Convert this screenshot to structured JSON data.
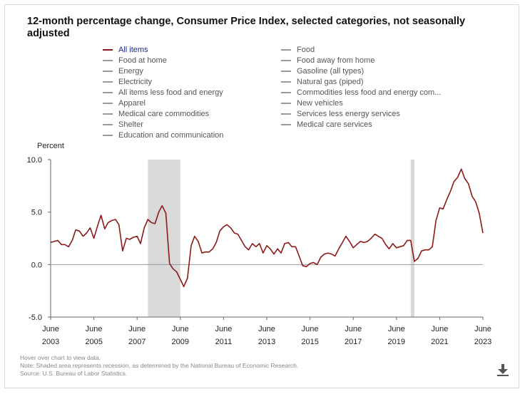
{
  "chart_data": {
    "type": "line",
    "title": "12-month percentage change, Consumer Price Index, selected categories, not seasonally adjusted",
    "ylabel": "Percent",
    "ylim": [
      -5.0,
      10.0
    ],
    "yticks": [
      "10.0",
      "5.0",
      "0.0",
      "-5.0"
    ],
    "xlim": [
      2003.42,
      2023.42
    ],
    "xticks": [
      {
        "month": "June",
        "year": "2003"
      },
      {
        "month": "June",
        "year": "2005"
      },
      {
        "month": "June",
        "year": "2007"
      },
      {
        "month": "June",
        "year": "2009"
      },
      {
        "month": "June",
        "year": "2011"
      },
      {
        "month": "June",
        "year": "2013"
      },
      {
        "month": "June",
        "year": "2015"
      },
      {
        "month": "June",
        "year": "2017"
      },
      {
        "month": "June",
        "year": "2019"
      },
      {
        "month": "June",
        "year": "2021"
      },
      {
        "month": "June",
        "year": "2023"
      }
    ],
    "recessions": [
      [
        2007.92,
        2009.42
      ],
      [
        2020.08,
        2020.25
      ]
    ],
    "series_color": "#8b1a1a",
    "recession_color": "#d9d9d9",
    "series": [
      {
        "name": "All items",
        "points": [
          [
            2003.42,
            2.1
          ],
          [
            2003.58,
            2.2
          ],
          [
            2003.75,
            2.3
          ],
          [
            2003.92,
            1.9
          ],
          [
            2004.08,
            1.9
          ],
          [
            2004.25,
            1.7
          ],
          [
            2004.42,
            2.3
          ],
          [
            2004.58,
            3.3
          ],
          [
            2004.75,
            3.2
          ],
          [
            2004.92,
            2.7
          ],
          [
            2005.08,
            3.0
          ],
          [
            2005.25,
            3.5
          ],
          [
            2005.42,
            2.5
          ],
          [
            2005.58,
            3.6
          ],
          [
            2005.75,
            4.7
          ],
          [
            2005.92,
            3.4
          ],
          [
            2006.08,
            4.0
          ],
          [
            2006.25,
            4.2
          ],
          [
            2006.42,
            4.3
          ],
          [
            2006.58,
            3.8
          ],
          [
            2006.75,
            1.3
          ],
          [
            2006.92,
            2.5
          ],
          [
            2007.08,
            2.4
          ],
          [
            2007.25,
            2.6
          ],
          [
            2007.42,
            2.7
          ],
          [
            2007.58,
            2.0
          ],
          [
            2007.75,
            3.5
          ],
          [
            2007.92,
            4.3
          ],
          [
            2008.08,
            4.0
          ],
          [
            2008.25,
            3.9
          ],
          [
            2008.42,
            5.0
          ],
          [
            2008.58,
            5.6
          ],
          [
            2008.75,
            4.9
          ],
          [
            2008.92,
            0.1
          ],
          [
            2009.08,
            -0.4
          ],
          [
            2009.25,
            -0.7
          ],
          [
            2009.42,
            -1.4
          ],
          [
            2009.58,
            -2.1
          ],
          [
            2009.75,
            -1.3
          ],
          [
            2009.92,
            1.8
          ],
          [
            2010.08,
            2.7
          ],
          [
            2010.25,
            2.2
          ],
          [
            2010.42,
            1.1
          ],
          [
            2010.58,
            1.2
          ],
          [
            2010.75,
            1.2
          ],
          [
            2010.92,
            1.5
          ],
          [
            2011.08,
            2.1
          ],
          [
            2011.25,
            3.2
          ],
          [
            2011.42,
            3.6
          ],
          [
            2011.58,
            3.8
          ],
          [
            2011.75,
            3.5
          ],
          [
            2011.92,
            3.0
          ],
          [
            2012.08,
            2.9
          ],
          [
            2012.25,
            2.3
          ],
          [
            2012.42,
            1.7
          ],
          [
            2012.58,
            1.4
          ],
          [
            2012.75,
            2.0
          ],
          [
            2012.92,
            1.7
          ],
          [
            2013.08,
            2.0
          ],
          [
            2013.25,
            1.1
          ],
          [
            2013.42,
            1.8
          ],
          [
            2013.58,
            1.5
          ],
          [
            2013.75,
            1.0
          ],
          [
            2013.92,
            1.5
          ],
          [
            2014.08,
            1.1
          ],
          [
            2014.25,
            2.0
          ],
          [
            2014.42,
            2.1
          ],
          [
            2014.58,
            1.7
          ],
          [
            2014.75,
            1.7
          ],
          [
            2014.92,
            0.8
          ],
          [
            2015.08,
            -0.1
          ],
          [
            2015.25,
            -0.2
          ],
          [
            2015.42,
            0.1
          ],
          [
            2015.58,
            0.2
          ],
          [
            2015.75,
            0.0
          ],
          [
            2015.92,
            0.7
          ],
          [
            2016.08,
            1.0
          ],
          [
            2016.25,
            1.1
          ],
          [
            2016.42,
            1.0
          ],
          [
            2016.58,
            0.8
          ],
          [
            2016.75,
            1.5
          ],
          [
            2016.92,
            2.1
          ],
          [
            2017.08,
            2.7
          ],
          [
            2017.25,
            2.2
          ],
          [
            2017.42,
            1.6
          ],
          [
            2017.58,
            1.9
          ],
          [
            2017.75,
            2.2
          ],
          [
            2017.92,
            2.1
          ],
          [
            2018.08,
            2.2
          ],
          [
            2018.25,
            2.5
          ],
          [
            2018.42,
            2.9
          ],
          [
            2018.58,
            2.7
          ],
          [
            2018.75,
            2.5
          ],
          [
            2018.92,
            1.9
          ],
          [
            2019.08,
            1.5
          ],
          [
            2019.25,
            2.0
          ],
          [
            2019.42,
            1.6
          ],
          [
            2019.58,
            1.7
          ],
          [
            2019.75,
            1.8
          ],
          [
            2019.92,
            2.3
          ],
          [
            2020.08,
            2.3
          ],
          [
            2020.25,
            0.3
          ],
          [
            2020.42,
            0.6
          ],
          [
            2020.58,
            1.3
          ],
          [
            2020.75,
            1.4
          ],
          [
            2020.92,
            1.4
          ],
          [
            2021.08,
            1.7
          ],
          [
            2021.25,
            4.2
          ],
          [
            2021.42,
            5.4
          ],
          [
            2021.58,
            5.3
          ],
          [
            2021.75,
            6.2
          ],
          [
            2021.92,
            7.0
          ],
          [
            2022.08,
            7.9
          ],
          [
            2022.25,
            8.3
          ],
          [
            2022.42,
            9.1
          ],
          [
            2022.58,
            8.2
          ],
          [
            2022.75,
            7.7
          ],
          [
            2022.92,
            6.5
          ],
          [
            2023.08,
            6.0
          ],
          [
            2023.25,
            4.9
          ],
          [
            2023.42,
            3.0
          ]
        ]
      }
    ]
  },
  "legend": {
    "items": [
      {
        "label": "All items",
        "active": true
      },
      {
        "label": "Food",
        "active": false
      },
      {
        "label": "Food at home",
        "active": false
      },
      {
        "label": "Food away from home",
        "active": false
      },
      {
        "label": "Energy",
        "active": false
      },
      {
        "label": "Gasoline (all types)",
        "active": false
      },
      {
        "label": "Electricity",
        "active": false
      },
      {
        "label": "Natural gas (piped)",
        "active": false
      },
      {
        "label": "All items less food and energy",
        "active": false
      },
      {
        "label": "Commodities less food and energy com...",
        "active": false
      },
      {
        "label": "Apparel",
        "active": false
      },
      {
        "label": "New vehicles",
        "active": false
      },
      {
        "label": "Medical care commodities",
        "active": false
      },
      {
        "label": "Services less energy services",
        "active": false
      },
      {
        "label": "Shelter",
        "active": false
      },
      {
        "label": "Medical care services",
        "active": false
      },
      {
        "label": "Education and communication",
        "active": false
      }
    ]
  },
  "notes": {
    "hover": "Hover over chart to view data.",
    "recession": "Note: Shaded area represents recession, as determined by the National Bureau of Economic Research.",
    "source": "Source: U.S. Bureau of Labor Statistics."
  },
  "icons": {
    "download": "download-icon"
  }
}
